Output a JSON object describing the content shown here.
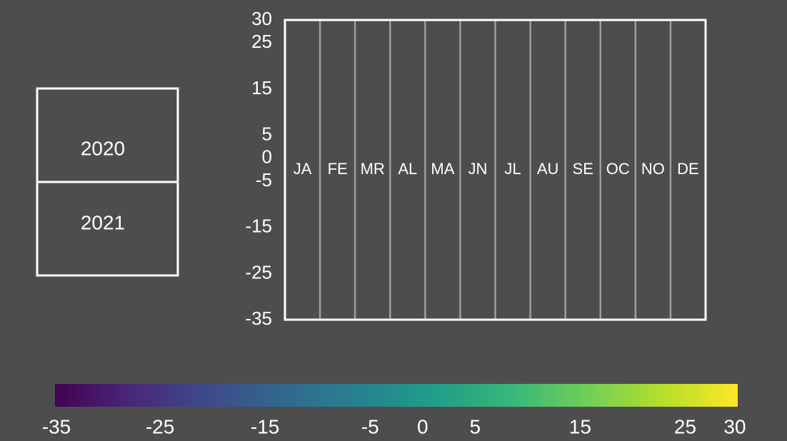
{
  "chart_data": {
    "type": "heatmap",
    "title": "",
    "xlabel": "",
    "ylabel": "",
    "year_selector": {
      "items": [
        "2020",
        "2021"
      ]
    },
    "categories": [
      "JA",
      "FE",
      "MR",
      "AL",
      "MA",
      "JN",
      "JL",
      "AU",
      "SE",
      "OC",
      "NO",
      "DE"
    ],
    "yticks": [
      30,
      25,
      15,
      5,
      0,
      -5,
      -15,
      -25,
      -35
    ],
    "ylim": [
      -35,
      30
    ],
    "grid": true,
    "colorbar": {
      "colormap": "viridis",
      "range": [
        -35,
        30
      ],
      "ticks": [
        -35,
        -25,
        -15,
        -5,
        0,
        5,
        15,
        25,
        30
      ],
      "colors": [
        "#440154",
        "#482878",
        "#3e4a89",
        "#31688e",
        "#26828e",
        "#1f9e89",
        "#35b779",
        "#6ece58",
        "#b5de2b",
        "#fde725"
      ]
    }
  }
}
